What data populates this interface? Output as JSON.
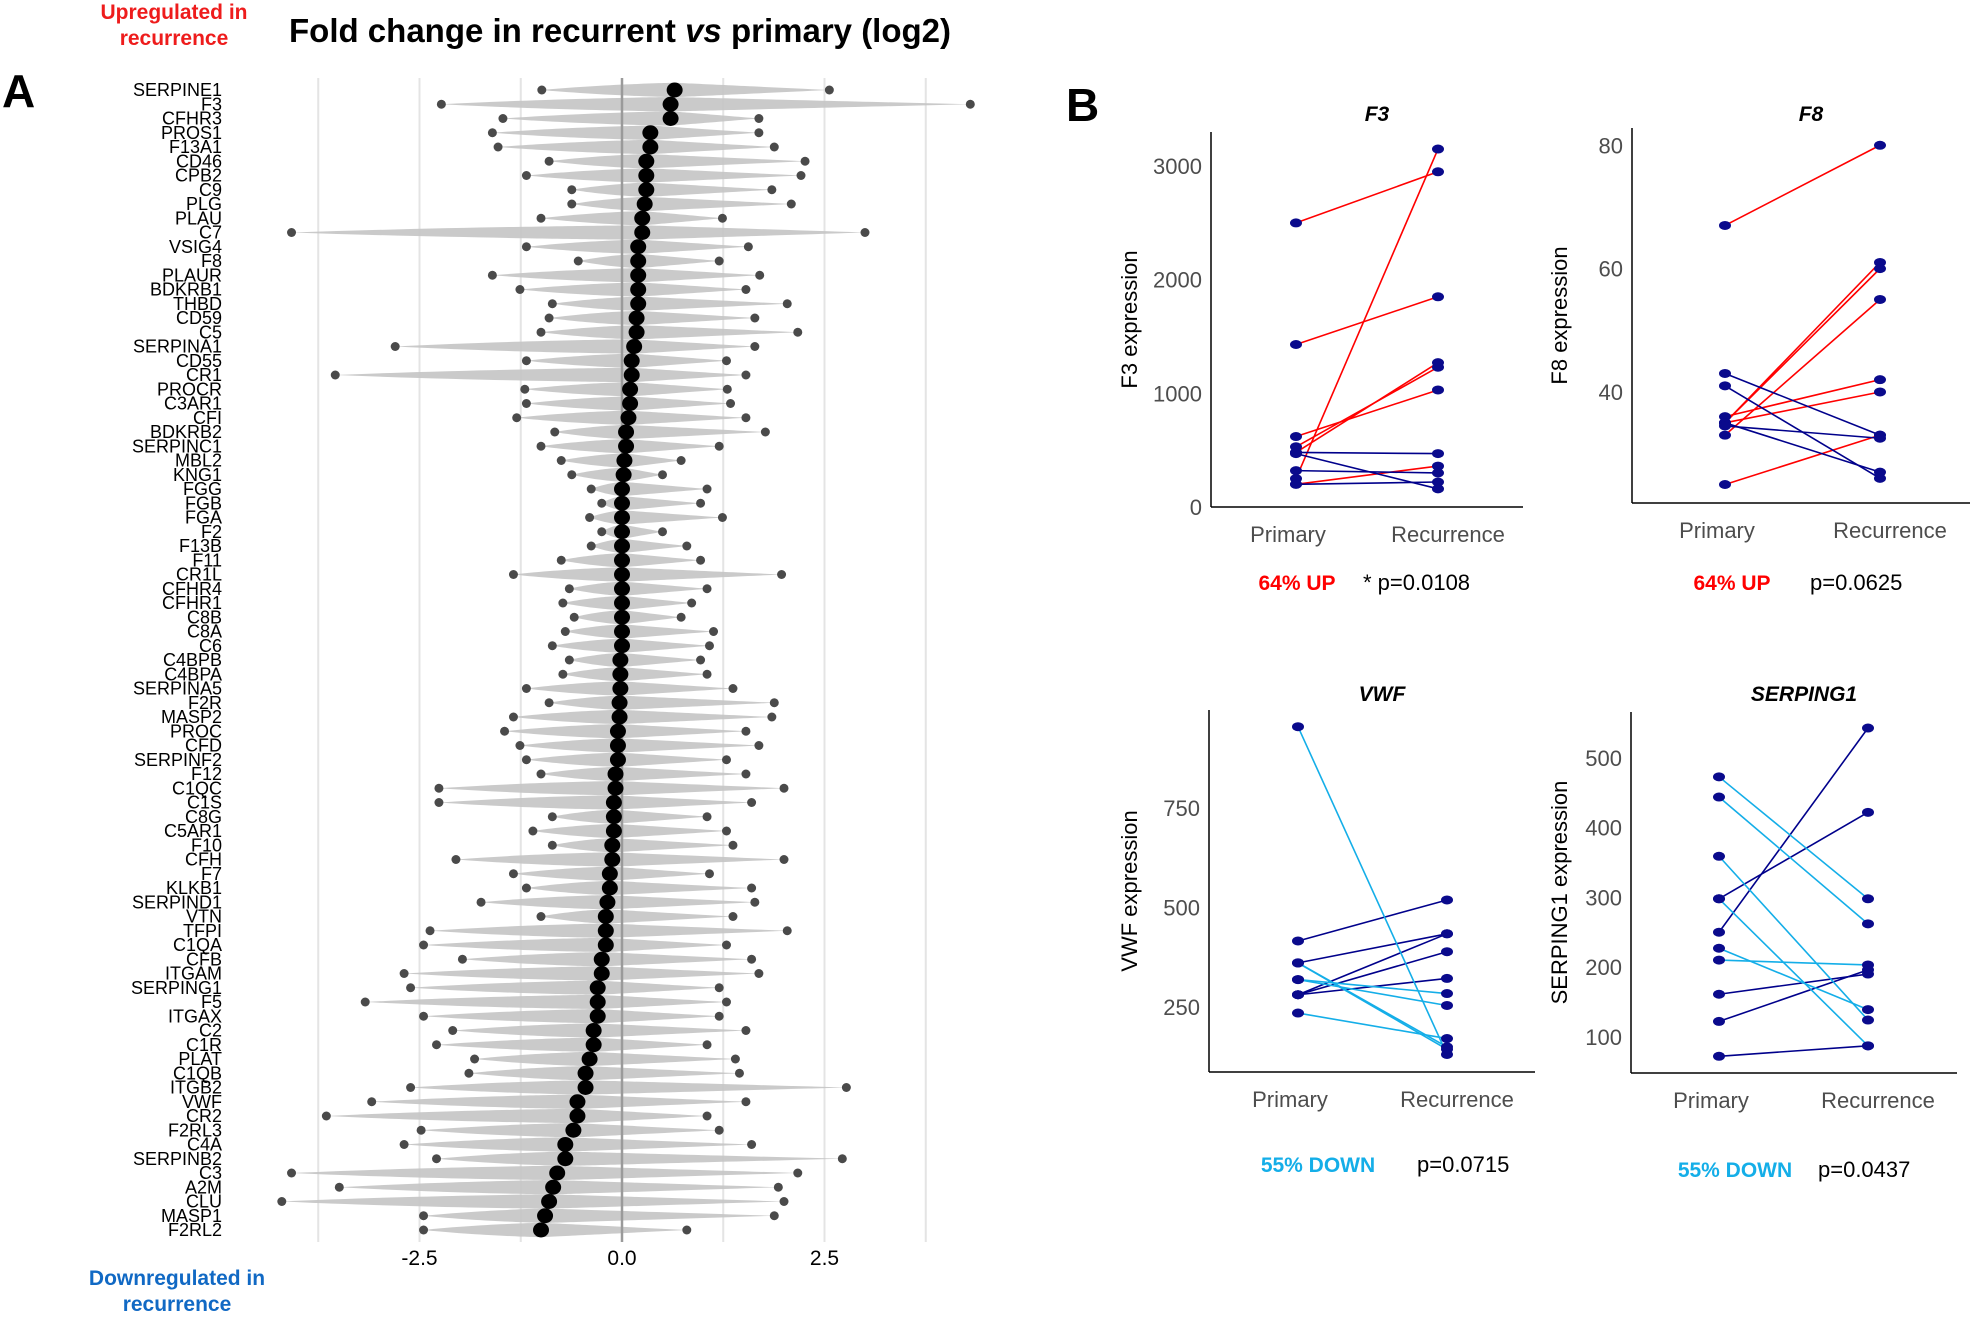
{
  "panel_a": {
    "letter": "A",
    "title_pre": "Fold change in recurrent ",
    "title_italic": "vs",
    "title_post": " primary (log2)",
    "up_note": "Upregulated in recurrence",
    "down_note": "Downregulated in recurrence"
  },
  "panel_b": {
    "letter": "B"
  },
  "chart_data": [
    {
      "type": "violin",
      "title": "Fold change in recurrent vs primary (log2)",
      "xlim": [
        -4.3,
        4.4
      ],
      "xticks": [
        -2.5,
        0.0,
        2.5
      ],
      "xtick_labels": [
        "-2.5",
        "0.0",
        "2.5"
      ],
      "grid": true,
      "colors": {
        "violin": "#c4c4c4",
        "median": "#000000",
        "point": "#4a4a4a"
      },
      "genes": [
        {
          "name": "SERPINE1",
          "median": 0.65,
          "min": -0.99,
          "max": 2.56
        },
        {
          "name": "F3",
          "median": 0.6,
          "min": -2.23,
          "max": 4.3
        },
        {
          "name": "CFHR3",
          "median": 0.6,
          "min": -1.47,
          "max": 1.69
        },
        {
          "name": "PROS1",
          "median": 0.35,
          "min": -1.6,
          "max": 1.69
        },
        {
          "name": "F13A1",
          "median": 0.35,
          "min": -1.53,
          "max": 1.88
        },
        {
          "name": "CD46",
          "median": 0.3,
          "min": -0.9,
          "max": 2.26
        },
        {
          "name": "CPB2",
          "median": 0.3,
          "min": -1.18,
          "max": 2.21
        },
        {
          "name": "C9",
          "median": 0.3,
          "min": -0.62,
          "max": 1.85
        },
        {
          "name": "PLG",
          "median": 0.28,
          "min": -0.62,
          "max": 2.09
        },
        {
          "name": "PLAU",
          "median": 0.25,
          "min": -1.0,
          "max": 1.24
        },
        {
          "name": "C7",
          "median": 0.25,
          "min": -4.08,
          "max": 3.0
        },
        {
          "name": "VSIG4",
          "median": 0.2,
          "min": -1.18,
          "max": 1.56
        },
        {
          "name": "F8",
          "median": 0.2,
          "min": -0.54,
          "max": 1.2
        },
        {
          "name": "PLAUR",
          "median": 0.2,
          "min": -1.6,
          "max": 1.7
        },
        {
          "name": "BDKRB1",
          "median": 0.2,
          "min": -1.26,
          "max": 1.53
        },
        {
          "name": "THBD",
          "median": 0.2,
          "min": -0.86,
          "max": 2.04
        },
        {
          "name": "CD59",
          "median": 0.18,
          "min": -0.9,
          "max": 1.64
        },
        {
          "name": "C5",
          "median": 0.18,
          "min": -1.0,
          "max": 2.17
        },
        {
          "name": "SERPINA1",
          "median": 0.15,
          "min": -2.8,
          "max": 1.64
        },
        {
          "name": "CD55",
          "median": 0.12,
          "min": -1.18,
          "max": 1.29
        },
        {
          "name": "CR1",
          "median": 0.12,
          "min": -3.54,
          "max": 1.53
        },
        {
          "name": "PROCR",
          "median": 0.1,
          "min": -1.2,
          "max": 1.3
        },
        {
          "name": "C3AR1",
          "median": 0.1,
          "min": -1.18,
          "max": 1.34
        },
        {
          "name": "CFI",
          "median": 0.08,
          "min": -1.3,
          "max": 1.53
        },
        {
          "name": "BDKRB2",
          "median": 0.05,
          "min": -0.83,
          "max": 1.77
        },
        {
          "name": "SERPINC1",
          "median": 0.05,
          "min": -1.0,
          "max": 1.2
        },
        {
          "name": "MBL2",
          "median": 0.03,
          "min": -0.75,
          "max": 0.73
        },
        {
          "name": "KNG1",
          "median": 0.02,
          "min": -0.62,
          "max": 0.5
        },
        {
          "name": "FGG",
          "median": 0.0,
          "min": -0.38,
          "max": 1.05
        },
        {
          "name": "FGB",
          "median": 0.0,
          "min": -0.25,
          "max": 0.97
        },
        {
          "name": "FGA",
          "median": 0.0,
          "min": -0.4,
          "max": 1.24
        },
        {
          "name": "F2",
          "median": 0.0,
          "min": -0.25,
          "max": 0.5
        },
        {
          "name": "F13B",
          "median": 0.0,
          "min": -0.38,
          "max": 0.8
        },
        {
          "name": "F11",
          "median": 0.0,
          "min": -0.75,
          "max": 0.97
        },
        {
          "name": "CR1L",
          "median": 0.0,
          "min": -1.34,
          "max": 1.97
        },
        {
          "name": "CFHR4",
          "median": 0.0,
          "min": -0.65,
          "max": 1.05
        },
        {
          "name": "CFHR1",
          "median": 0.0,
          "min": -0.73,
          "max": 0.86
        },
        {
          "name": "C8B",
          "median": 0.0,
          "min": -0.59,
          "max": 0.73
        },
        {
          "name": "C8A",
          "median": 0.0,
          "min": -0.7,
          "max": 1.13
        },
        {
          "name": "C6",
          "median": 0.0,
          "min": -0.86,
          "max": 1.08
        },
        {
          "name": "C4BPB",
          "median": -0.02,
          "min": -0.65,
          "max": 0.97
        },
        {
          "name": "C4BPA",
          "median": -0.02,
          "min": -0.73,
          "max": 1.05
        },
        {
          "name": "SERPINA5",
          "median": -0.02,
          "min": -1.18,
          "max": 1.37
        },
        {
          "name": "F2R",
          "median": -0.03,
          "min": -0.9,
          "max": 1.88
        },
        {
          "name": "MASP2",
          "median": -0.03,
          "min": -1.34,
          "max": 1.85
        },
        {
          "name": "PROC",
          "median": -0.05,
          "min": -1.45,
          "max": 1.53
        },
        {
          "name": "CFD",
          "median": -0.05,
          "min": -1.26,
          "max": 1.69
        },
        {
          "name": "SERPINF2",
          "median": -0.05,
          "min": -1.18,
          "max": 1.29
        },
        {
          "name": "F12",
          "median": -0.08,
          "min": -1.0,
          "max": 1.53
        },
        {
          "name": "C1QC",
          "median": -0.08,
          "min": -2.26,
          "max": 2.0
        },
        {
          "name": "C1S",
          "median": -0.1,
          "min": -2.26,
          "max": 1.6
        },
        {
          "name": "C8G",
          "median": -0.1,
          "min": -0.86,
          "max": 1.05
        },
        {
          "name": "C5AR1",
          "median": -0.1,
          "min": -1.1,
          "max": 1.29
        },
        {
          "name": "F10",
          "median": -0.12,
          "min": -0.86,
          "max": 1.37
        },
        {
          "name": "CFH",
          "median": -0.12,
          "min": -2.05,
          "max": 2.0
        },
        {
          "name": "F7",
          "median": -0.15,
          "min": -1.34,
          "max": 1.08
        },
        {
          "name": "KLKB1",
          "median": -0.15,
          "min": -1.18,
          "max": 1.6
        },
        {
          "name": "SERPIND1",
          "median": -0.18,
          "min": -1.74,
          "max": 1.64
        },
        {
          "name": "VTN",
          "median": -0.2,
          "min": -1.0,
          "max": 1.37
        },
        {
          "name": "TFPI",
          "median": -0.2,
          "min": -2.37,
          "max": 2.04
        },
        {
          "name": "C1QA",
          "median": -0.2,
          "min": -2.45,
          "max": 1.29
        },
        {
          "name": "CFB",
          "median": -0.25,
          "min": -1.97,
          "max": 1.6
        },
        {
          "name": "ITGAM",
          "median": -0.25,
          "min": -2.69,
          "max": 1.69
        },
        {
          "name": "SERPING1",
          "median": -0.3,
          "min": -2.61,
          "max": 1.2
        },
        {
          "name": "F5",
          "median": -0.3,
          "min": -3.17,
          "max": 1.29
        },
        {
          "name": "ITGAX",
          "median": -0.3,
          "min": -2.45,
          "max": 1.2
        },
        {
          "name": "C2",
          "median": -0.35,
          "min": -2.09,
          "max": 1.53
        },
        {
          "name": "C1R",
          "median": -0.35,
          "min": -2.29,
          "max": 1.05
        },
        {
          "name": "PLAT",
          "median": -0.4,
          "min": -1.82,
          "max": 1.4
        },
        {
          "name": "C1QB",
          "median": -0.45,
          "min": -1.89,
          "max": 1.45
        },
        {
          "name": "ITGB2",
          "median": -0.45,
          "min": -2.61,
          "max": 2.77
        },
        {
          "name": "VWF",
          "median": -0.55,
          "min": -3.09,
          "max": 1.53
        },
        {
          "name": "CR2",
          "median": -0.55,
          "min": -3.65,
          "max": 1.05
        },
        {
          "name": "F2RL3",
          "median": -0.6,
          "min": -2.48,
          "max": 1.2
        },
        {
          "name": "C4A",
          "median": -0.7,
          "min": -2.69,
          "max": 1.6
        },
        {
          "name": "SERPINB2",
          "median": -0.7,
          "min": -2.29,
          "max": 2.72
        },
        {
          "name": "C3",
          "median": -0.8,
          "min": -4.08,
          "max": 2.17
        },
        {
          "name": "A2M",
          "median": -0.85,
          "min": -3.49,
          "max": 1.93
        },
        {
          "name": "CLU",
          "median": -0.9,
          "min": -4.2,
          "max": 2.0
        },
        {
          "name": "MASP1",
          "median": -0.95,
          "min": -2.45,
          "max": 1.88
        },
        {
          "name": "F2RL2",
          "median": -1.0,
          "min": -2.45,
          "max": 0.8
        }
      ]
    },
    {
      "type": "line",
      "id": "f3",
      "title": "F3",
      "ylabel": "F3 expression",
      "categories": [
        "Primary",
        "Recurrence"
      ],
      "ylim": [
        0,
        3300
      ],
      "yticks": [
        0,
        1000,
        2000,
        3000
      ],
      "pairs_increase": [
        [
          2500,
          2950
        ],
        [
          1430,
          1850
        ],
        [
          620,
          1030
        ],
        [
          530,
          1230
        ],
        [
          480,
          1270
        ],
        [
          250,
          3150
        ],
        [
          200,
          360
        ]
      ],
      "pairs_decrease": [
        [
          480,
          470
        ],
        [
          470,
          160
        ],
        [
          320,
          300
        ],
        [
          200,
          220
        ]
      ],
      "increase_color": "#ff0000",
      "decrease_color": "#00008b",
      "point_color": "#0a0a8c",
      "summary": "64% UP",
      "summary_color": "#ff0000",
      "pvalue": "* p=0.0108"
    },
    {
      "type": "line",
      "id": "f8",
      "title": "F8",
      "ylabel": "F8 expression",
      "categories": [
        "Primary",
        "Recurrence"
      ],
      "ylim": [
        22,
        82.8
      ],
      "yticks": [
        40,
        60,
        80
      ],
      "pairs_increase": [
        [
          67,
          80
        ],
        [
          35,
          61
        ],
        [
          35,
          60
        ],
        [
          33,
          55
        ],
        [
          36,
          42
        ],
        [
          35,
          40
        ],
        [
          25,
          33
        ]
      ],
      "pairs_decrease": [
        [
          43,
          33
        ],
        [
          41,
          26
        ],
        [
          35,
          27
        ],
        [
          34.5,
          32.5
        ]
      ],
      "increase_color": "#ff0000",
      "decrease_color": "#00008b",
      "point_color": "#0a0a8c",
      "summary": "64% UP",
      "summary_color": "#ff0000",
      "pvalue": "p=0.0625"
    },
    {
      "type": "line",
      "id": "vwf",
      "title": "VWF",
      "ylabel": "VWF expression",
      "categories": [
        "Primary",
        "Recurrence"
      ],
      "ylim": [
        87,
        996
      ],
      "yticks": [
        250,
        500,
        750
      ],
      "pairs_increase": [
        [
          416,
          519
        ],
        [
          361,
          434
        ],
        [
          281,
          434
        ],
        [
          281,
          389
        ],
        [
          281,
          322
        ]
      ],
      "pairs_decrease": [
        [
          954,
          131
        ],
        [
          361,
          144
        ],
        [
          361,
          150
        ],
        [
          319,
          284
        ],
        [
          319,
          254
        ],
        [
          235,
          171
        ]
      ],
      "increase_color": "#00008b",
      "decrease_color": "#14aee8",
      "point_color": "#0a0a8c",
      "summary": "55% DOWN",
      "summary_color": "#14aee8",
      "pvalue": "p=0.0715"
    },
    {
      "type": "line",
      "id": "serping1",
      "title": "SERPING1",
      "ylabel": "SERPING1 expression",
      "categories": [
        "Primary",
        "Recurrence"
      ],
      "ylim": [
        48,
        566
      ],
      "yticks": [
        100,
        200,
        300,
        400,
        500
      ],
      "pairs_increase": [
        [
          250,
          543
        ],
        [
          298,
          422
        ],
        [
          161,
          190
        ],
        [
          122,
          196
        ],
        [
          72,
          87
        ]
      ],
      "pairs_decrease": [
        [
          473,
          298
        ],
        [
          444,
          262
        ],
        [
          359,
          124
        ],
        [
          298,
          87
        ],
        [
          227,
          139
        ],
        [
          210,
          203
        ]
      ],
      "increase_color": "#00008b",
      "decrease_color": "#14aee8",
      "point_color": "#0a0a8c",
      "summary": "55% DOWN",
      "summary_color": "#14aee8",
      "pvalue": "p=0.0437"
    }
  ]
}
